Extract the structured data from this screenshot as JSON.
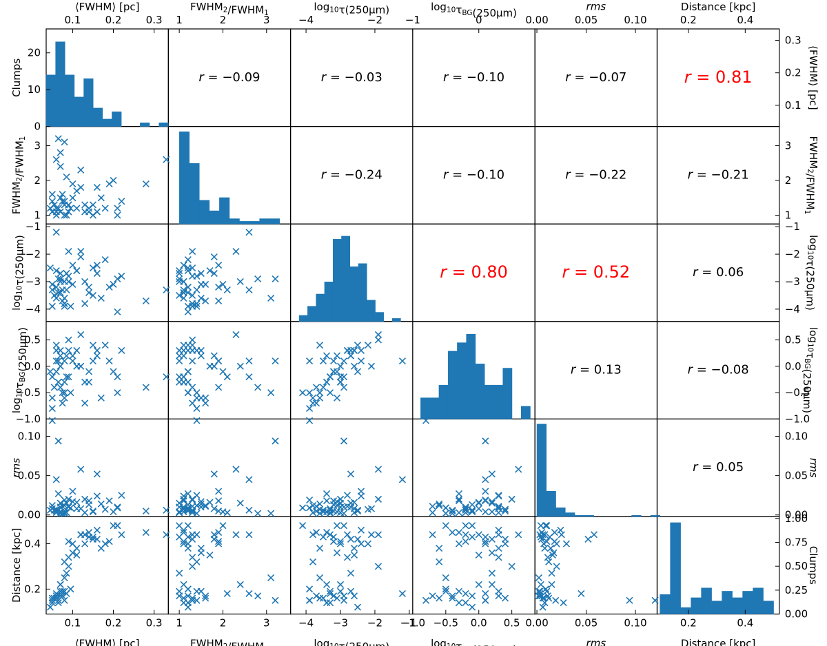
{
  "chart_data": {
    "type": "scatter-matrix",
    "title": "",
    "variables": [
      {
        "key": "fwhm",
        "label": "⟨FWHM⟩ [pc]",
        "range": [
          0.035,
          0.335
        ],
        "ticks": [
          0.1,
          0.2,
          0.3
        ],
        "tick_labels": [
          "0.1",
          "0.2",
          "0.3"
        ],
        "right_ticks": [
          0.1,
          0.2,
          0.3
        ],
        "right_tick_labels": [
          "0.1",
          "0.2",
          "0.3"
        ]
      },
      {
        "key": "ratio",
        "label": "FWHM2/FWHM1",
        "range": [
          0.75,
          3.55
        ],
        "ticks": [
          1,
          2,
          3
        ],
        "tick_labels": [
          "1",
          "2",
          "3"
        ]
      },
      {
        "key": "logtau",
        "label": "log10τ(250μm)",
        "range": [
          -4.45,
          -0.9
        ],
        "ticks": [
          -4,
          -3,
          -2,
          -1
        ],
        "tick_labels": [
          "−4",
          "−3",
          "−2",
          "−1"
        ],
        "top_ticks": [
          -4,
          -2
        ],
        "top_tick_labels": [
          "−4",
          "−2"
        ]
      },
      {
        "key": "logtaubg",
        "label": "log10τBG(250μm)",
        "range": [
          -1.0,
          0.85
        ],
        "ticks": [
          -1.0,
          -0.5,
          0.0,
          0.5
        ],
        "tick_labels": [
          "−1.0",
          "−0.5",
          "0.0",
          "0.5"
        ],
        "top_ticks": [
          -1,
          0
        ],
        "top_tick_labels": [
          "−1",
          "0"
        ]
      },
      {
        "key": "rms",
        "label": "rms",
        "range": [
          -0.002,
          0.122
        ],
        "ticks": [
          0.0,
          0.05,
          0.1
        ],
        "tick_labels": [
          "0.00",
          "0.05",
          "0.10"
        ]
      },
      {
        "key": "distance",
        "label": "Distance [kpc]",
        "range": [
          0.09,
          0.52
        ],
        "ticks": [
          0.2,
          0.4
        ],
        "tick_labels": [
          "0.2",
          "0.4"
        ]
      }
    ],
    "diagonal": [
      {
        "ylabel": "Clumps",
        "ylim": [
          0,
          26.5
        ],
        "yticks": [
          0,
          10,
          20
        ],
        "ytick_labels": [
          "0",
          "10",
          "20"
        ],
        "bin_range": [
          0.035,
          0.335
        ],
        "counts": [
          14,
          23,
          14,
          8,
          13,
          5,
          2,
          4,
          0,
          0,
          1,
          0,
          1
        ]
      },
      {
        "bin_range": [
          1.0,
          3.3
        ],
        "counts": [
          35,
          23,
          9,
          5,
          10,
          2,
          1,
          1,
          2,
          2
        ],
        "ylim": [
          0,
          37
        ]
      },
      {
        "bin_range": [
          -4.2,
          -1.25
        ],
        "counts": [
          2,
          5,
          9,
          13,
          27,
          28,
          18,
          19,
          7,
          3,
          0,
          1
        ],
        "ylim": [
          0,
          32
        ]
      },
      {
        "bin_range": [
          -0.88,
          0.78
        ],
        "counts": [
          5,
          5,
          8,
          16,
          18,
          20,
          13,
          8,
          8,
          12,
          0,
          3
        ],
        "ylim": [
          0,
          23
        ]
      },
      {
        "bin_range": [
          0.0,
          0.125
        ],
        "counts": [
          73,
          20,
          7,
          3,
          1,
          1,
          0,
          0,
          0,
          0,
          1,
          0,
          1
        ],
        "ylim": [
          0,
          77
        ]
      },
      {
        "ylabel": "Clumps",
        "ylim": [
          0,
          1.02
        ],
        "yticks": [
          0.0,
          0.25,
          0.5,
          0.75,
          1.0
        ],
        "ytick_labels": [
          "0.00",
          "0.25",
          "0.50",
          "0.75",
          "1.00"
        ],
        "bin_range": [
          0.1,
          0.5
        ],
        "counts": [
          6,
          28,
          2,
          5,
          8,
          4,
          7,
          5,
          7,
          8,
          4
        ],
        "count_max": 29
      }
    ],
    "correlations": [
      {
        "row": 0,
        "col": 1,
        "r": "−0.09",
        "highlight": false
      },
      {
        "row": 0,
        "col": 2,
        "r": "−0.03",
        "highlight": false
      },
      {
        "row": 0,
        "col": 3,
        "r": "−0.10",
        "highlight": false
      },
      {
        "row": 0,
        "col": 4,
        "r": "−0.07",
        "highlight": false
      },
      {
        "row": 0,
        "col": 5,
        "r": "0.81",
        "highlight": true
      },
      {
        "row": 1,
        "col": 2,
        "r": "−0.24",
        "highlight": false
      },
      {
        "row": 1,
        "col": 3,
        "r": "−0.10",
        "highlight": false
      },
      {
        "row": 1,
        "col": 4,
        "r": "−0.22",
        "highlight": false
      },
      {
        "row": 1,
        "col": 5,
        "r": "−0.21",
        "highlight": false
      },
      {
        "row": 2,
        "col": 3,
        "r": "0.80",
        "highlight": true
      },
      {
        "row": 2,
        "col": 4,
        "r": "0.52",
        "highlight": true
      },
      {
        "row": 2,
        "col": 5,
        "r": "0.06",
        "highlight": false
      },
      {
        "row": 3,
        "col": 4,
        "r": "0.13",
        "highlight": false
      },
      {
        "row": 3,
        "col": 5,
        "r": "−0.08",
        "highlight": false
      },
      {
        "row": 4,
        "col": 5,
        "r": "0.05",
        "highlight": false
      }
    ],
    "points": {
      "fwhm": [
        0.06,
        0.07,
        0.08,
        0.09,
        0.05,
        0.07,
        0.06,
        0.08,
        0.1,
        0.12,
        0.14,
        0.16,
        0.18,
        0.2,
        0.22,
        0.055,
        0.065,
        0.075,
        0.085,
        0.095,
        0.11,
        0.13,
        0.15,
        0.17,
        0.19,
        0.21,
        0.045,
        0.05,
        0.06,
        0.07,
        0.08,
        0.09,
        0.1,
        0.12,
        0.14,
        0.16,
        0.28,
        0.33,
        0.06,
        0.07,
        0.08,
        0.05,
        0.065,
        0.075,
        0.085,
        0.09,
        0.11,
        0.13,
        0.15,
        0.21
      ],
      "ratio": [
        1.2,
        1.5,
        3.1,
        1.3,
        1.1,
        2.4,
        1.0,
        1.4,
        1.9,
        2.3,
        1.1,
        1.8,
        1.2,
        2.0,
        1.4,
        1.3,
        3.2,
        1.6,
        2.1,
        1.2,
        1.7,
        1.1,
        1.3,
        1.5,
        1.9,
        1.0,
        1.2,
        1.4,
        2.6,
        1.1,
        1.0,
        1.3,
        1.5,
        1.8,
        1.2,
        1.1,
        1.9,
        2.6,
        1.1,
        2.8,
        1.3,
        1.6,
        1.2,
        1.4,
        1.0,
        1.1,
        1.2,
        1.3,
        1.0,
        1.2
      ],
      "logtau": [
        -3.2,
        -2.7,
        -3.6,
        -1.9,
        -3.3,
        -3.0,
        -2.6,
        -3.8,
        -2.4,
        -1.9,
        -3.4,
        -2.7,
        -2.2,
        -3.1,
        -2.8,
        -3.5,
        -2.9,
        -3.7,
        -3.3,
        -3.9,
        -2.6,
        -3.0,
        -2.5,
        -3.6,
        -3.2,
        -2.9,
        -2.5,
        -3.9,
        -1.2,
        -3.4,
        -3.0,
        -2.8,
        -3.1,
        -2.1,
        -3.2,
        -2.4,
        -3.7,
        -3.3,
        -3.6,
        -2.9,
        -3.9,
        -3.1,
        -3.4,
        -3.3,
        -2.7,
        -3.0,
        -2.6,
        -3.8,
        -3.5,
        -4.1
      ],
      "logtaubg": [
        -0.1,
        0.3,
        -0.5,
        0.5,
        -0.2,
        0.0,
        0.3,
        -0.6,
        0.1,
        0.6,
        -0.3,
        0.2,
        0.4,
        -0.1,
        0.3,
        -0.4,
        0.1,
        -0.7,
        -0.2,
        -0.5,
        0.0,
        -0.3,
        0.4,
        -0.6,
        0.1,
        -0.2,
        -0.1,
        -0.8,
        0.1,
        0.2,
        -0.3,
        0.3,
        0.2,
        0.0,
        -0.1,
        0.3,
        -0.4,
        -0.2,
        0.4,
        -0.4,
        0.1,
        -0.6,
        -0.3,
        -0.5,
        0.2,
        -0.2,
        0.3,
        -0.7,
        0.1,
        -0.5
      ],
      "rms": [
        0.005,
        0.01,
        0.002,
        0.02,
        0.008,
        0.015,
        0.003,
        0.012,
        0.03,
        0.058,
        0.018,
        0.052,
        0.007,
        0.004,
        0.025,
        0.006,
        0.094,
        0.011,
        0.003,
        0.009,
        0.016,
        0.02,
        0.005,
        0.014,
        0.018,
        0.01,
        0.006,
        0.12,
        0.045,
        0.004,
        0.003,
        0.011,
        0.017,
        0.008,
        0.013,
        0.024,
        0.005,
        0.006,
        0.007,
        0.002,
        0.019,
        0.012,
        0.027,
        0.002,
        0.015,
        0.01,
        0.008,
        0.003,
        0.004,
        0.009
      ],
      "distance": [
        0.17,
        0.19,
        0.25,
        0.3,
        0.14,
        0.22,
        0.17,
        0.32,
        0.4,
        0.44,
        0.45,
        0.42,
        0.4,
        0.48,
        0.44,
        0.16,
        0.15,
        0.17,
        0.18,
        0.2,
        0.35,
        0.4,
        0.42,
        0.38,
        0.41,
        0.48,
        0.12,
        0.15,
        0.18,
        0.22,
        0.19,
        0.34,
        0.36,
        0.44,
        0.43,
        0.46,
        0.45,
        0.44,
        0.16,
        0.17,
        0.15,
        0.16,
        0.14,
        0.19,
        0.27,
        0.41,
        0.38,
        0.44,
        0.43,
        0.48
      ]
    },
    "colors": {
      "points": "#1f77b4",
      "bars": "#1f77b4",
      "highlight": "#ff0000",
      "text": "#000000"
    },
    "grid": false,
    "legend": "none"
  }
}
